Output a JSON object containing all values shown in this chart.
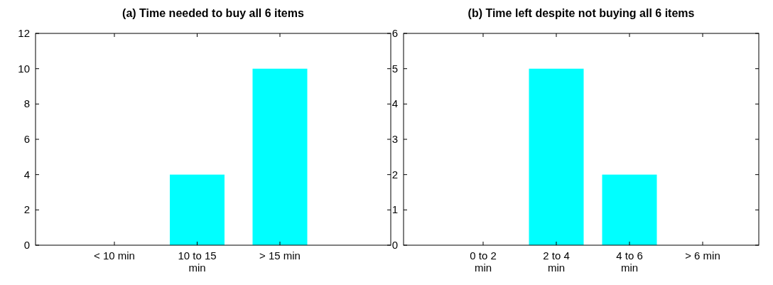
{
  "chart_data": [
    {
      "type": "bar",
      "title": "(a) Time needed to buy all 6 items",
      "categories": [
        "< 10 min",
        "10 to 15 min",
        "> 15 min"
      ],
      "values": [
        0,
        4,
        10
      ],
      "color": "#00ffff",
      "ylim": [
        0,
        12
      ],
      "yticks": [
        0,
        2,
        4,
        6,
        8,
        10,
        12
      ],
      "grid": false
    },
    {
      "type": "bar",
      "title": "(b) Time left despite not buying all 6 items",
      "categories": [
        "0 to 2 min",
        "2 to 4 min",
        "4 to 6 min",
        "> 6 min"
      ],
      "values": [
        0,
        5,
        2,
        0
      ],
      "color": "#00ffff",
      "ylim": [
        0,
        6
      ],
      "yticks": [
        0,
        1,
        2,
        3,
        4,
        5,
        6
      ],
      "grid": false
    }
  ]
}
